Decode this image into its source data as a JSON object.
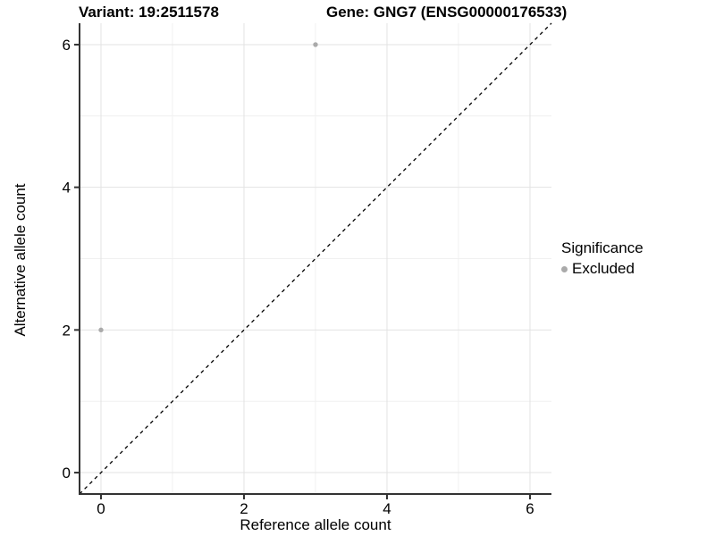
{
  "title": {
    "variant": "Variant: 19:2511578",
    "gene": "Gene: GNG7 (ENSG00000176533)"
  },
  "chart_data": {
    "type": "scatter",
    "title_left": "Variant: 19:2511578",
    "title_right": "Gene: GNG7 (ENSG00000176533)",
    "xlabel": "Reference allele count",
    "ylabel": "Alternative allele count",
    "xlim": [
      -0.3,
      6.3
    ],
    "ylim": [
      -0.3,
      6.3
    ],
    "x_ticks": [
      0,
      2,
      4,
      6
    ],
    "y_ticks": [
      0,
      2,
      4,
      6
    ],
    "x_minor_ticks": [
      1,
      3,
      5
    ],
    "y_minor_ticks": [
      1,
      3,
      5
    ],
    "grid": true,
    "identity_line": {
      "style": "dashed",
      "x1": -0.3,
      "y1": -0.3,
      "x2": 6.3,
      "y2": 6.3
    },
    "series": [
      {
        "name": "Excluded",
        "color": "#aaaaaa",
        "points": [
          {
            "x": 3,
            "y": 6
          },
          {
            "x": 0,
            "y": 2
          }
        ]
      }
    ],
    "legend": {
      "title": "Significance",
      "position": "right",
      "items": [
        {
          "label": "Excluded",
          "color": "#aaaaaa"
        }
      ]
    }
  },
  "colors": {
    "background": "#ffffff",
    "grid_major": "#e3e3e3",
    "grid_minor": "#f0f0f0",
    "axis_line": "#333333",
    "tick": "#333333",
    "text": "#000000",
    "point": "#aaaaaa",
    "identity_line": "#000000"
  }
}
